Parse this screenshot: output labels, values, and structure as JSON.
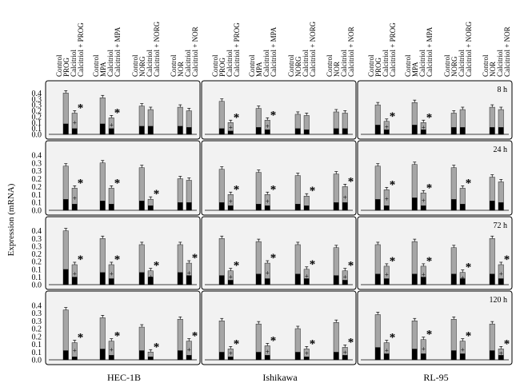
{
  "figure": {
    "ylabel": "Expression (mRNA)",
    "columns": [
      "HEC-1B",
      "Ishikawa",
      "RL-95"
    ],
    "rows": [
      "8 h",
      "24 h",
      "72 h",
      "120 h"
    ],
    "treatment_labels": [
      "Control",
      "PROG",
      "Calcitriol",
      "Calcitriol + PROG",
      "Control",
      "MPA",
      "Calcitriol",
      "Calcitriol + MPA",
      "Control",
      "NORG",
      "Calcitriol",
      "Calcitriol + NORG",
      "Control",
      "NOR",
      "Calcitriol",
      "Calcitriol + NOR"
    ],
    "y_ticks": [
      "0.0",
      "0.1",
      "0.1",
      "0.2",
      "0.2",
      "0.3",
      "0.3",
      "0.4"
    ],
    "significance_symbol": "*",
    "inner_symbol": "+",
    "colors": {
      "total": "#a6a6a6",
      "inner": "#000000",
      "panel_bg": "#f2f2f2",
      "border": "#000000"
    }
  },
  "chart_data": {
    "type": "bar",
    "title": "",
    "xlabel": "",
    "ylabel": "Expression (mRNA)",
    "ylim": [
      0,
      0.4
    ],
    "grid": false,
    "stacked_overlay": true,
    "categories": [
      "Control",
      "PROG",
      "Calcitriol",
      "Calcitriol + PROG",
      "Control",
      "MPA",
      "Calcitriol",
      "Calcitriol + MPA",
      "Control",
      "NORG",
      "Calcitriol",
      "Calcitriol + NORG",
      "Control",
      "NOR",
      "Calcitriol",
      "Calcitriol + NOR"
    ],
    "panels": [
      {
        "row": "8 h",
        "column": "HEC-1B",
        "total": [
          0.35,
          0.18,
          0.31,
          0.14,
          0.24,
          0.21,
          0.23,
          0.2
        ],
        "inner": [
          0.09,
          0.05,
          0.09,
          0.05,
          0.07,
          0.07,
          0.07,
          0.06
        ],
        "star": [
          false,
          true,
          false,
          true,
          false,
          false,
          false,
          false
        ],
        "plus": [
          false,
          true,
          false,
          true,
          false,
          false,
          false,
          false
        ]
      },
      {
        "row": "8 h",
        "column": "Ishikawa",
        "total": [
          0.28,
          0.1,
          0.22,
          0.12,
          0.17,
          0.16,
          0.19,
          0.18
        ],
        "inner": [
          0.05,
          0.03,
          0.06,
          0.04,
          0.05,
          0.04,
          0.05,
          0.05
        ],
        "star": [
          false,
          true,
          false,
          true,
          false,
          false,
          false,
          false
        ],
        "plus": [
          false,
          true,
          false,
          true,
          false,
          false,
          false,
          false
        ]
      },
      {
        "row": "8 h",
        "column": "RL-95",
        "total": [
          0.25,
          0.11,
          0.27,
          0.1,
          0.18,
          0.21,
          0.23,
          0.21
        ],
        "inner": [
          0.08,
          0.04,
          0.08,
          0.04,
          0.06,
          0.06,
          0.06,
          0.06
        ],
        "star": [
          false,
          true,
          false,
          true,
          false,
          false,
          false,
          false
        ],
        "plus": [
          false,
          true,
          false,
          true,
          false,
          false,
          false,
          false
        ]
      },
      {
        "row": "24 h",
        "column": "HEC-1B",
        "total": [
          0.28,
          0.14,
          0.3,
          0.14,
          0.27,
          0.07,
          0.2,
          0.19
        ],
        "inner": [
          0.07,
          0.04,
          0.06,
          0.04,
          0.06,
          0.03,
          0.05,
          0.05
        ],
        "star": [
          false,
          true,
          false,
          true,
          false,
          true,
          false,
          false
        ],
        "plus": [
          false,
          true,
          false,
          false,
          false,
          false,
          false,
          false
        ]
      },
      {
        "row": "24 h",
        "column": "Ishikawa",
        "total": [
          0.26,
          0.1,
          0.24,
          0.1,
          0.22,
          0.09,
          0.23,
          0.15
        ],
        "inner": [
          0.05,
          0.03,
          0.04,
          0.03,
          0.04,
          0.03,
          0.05,
          0.05
        ],
        "star": [
          false,
          true,
          false,
          true,
          false,
          true,
          false,
          true
        ],
        "plus": [
          false,
          true,
          false,
          true,
          false,
          false,
          false,
          true
        ]
      },
      {
        "row": "24 h",
        "column": "RL-95",
        "total": [
          0.28,
          0.13,
          0.29,
          0.11,
          0.27,
          0.14,
          0.21,
          0.18
        ],
        "inner": [
          0.07,
          0.03,
          0.08,
          0.03,
          0.07,
          0.04,
          0.06,
          0.05
        ],
        "star": [
          false,
          true,
          false,
          true,
          false,
          true,
          false,
          false
        ],
        "plus": [
          false,
          true,
          false,
          true,
          false,
          false,
          false,
          false
        ]
      },
      {
        "row": "72 h",
        "column": "HEC-1B",
        "total": [
          0.35,
          0.13,
          0.3,
          0.13,
          0.26,
          0.09,
          0.26,
          0.14
        ],
        "inner": [
          0.1,
          0.05,
          0.08,
          0.04,
          0.08,
          0.05,
          0.08,
          0.06
        ],
        "star": [
          false,
          true,
          false,
          true,
          false,
          true,
          false,
          true
        ],
        "plus": [
          false,
          true,
          false,
          true,
          false,
          true,
          false,
          true
        ]
      },
      {
        "row": "72 h",
        "column": "Ishikawa",
        "total": [
          0.3,
          0.09,
          0.28,
          0.14,
          0.26,
          0.1,
          0.24,
          0.09
        ],
        "inner": [
          0.06,
          0.03,
          0.07,
          0.04,
          0.07,
          0.04,
          0.06,
          0.03
        ],
        "star": [
          false,
          true,
          false,
          true,
          false,
          true,
          false,
          true
        ],
        "plus": [
          false,
          true,
          false,
          true,
          false,
          true,
          false,
          true
        ]
      },
      {
        "row": "72 h",
        "column": "RL-95",
        "total": [
          0.26,
          0.12,
          0.28,
          0.12,
          0.24,
          0.08,
          0.3,
          0.13
        ],
        "inner": [
          0.07,
          0.04,
          0.07,
          0.05,
          0.07,
          0.04,
          0.07,
          0.04
        ],
        "star": [
          false,
          true,
          false,
          true,
          false,
          true,
          false,
          true
        ],
        "plus": [
          false,
          true,
          false,
          true,
          false,
          true,
          false,
          true
        ]
      },
      {
        "row": "120 h",
        "column": "HEC-1B",
        "total": [
          0.32,
          0.11,
          0.27,
          0.12,
          0.21,
          0.05,
          0.26,
          0.12
        ],
        "inner": [
          0.06,
          0.02,
          0.07,
          0.03,
          0.06,
          0.02,
          0.06,
          0.03
        ],
        "star": [
          false,
          true,
          false,
          true,
          false,
          true,
          false,
          true
        ],
        "plus": [
          false,
          true,
          false,
          true,
          false,
          false,
          false,
          true
        ]
      },
      {
        "row": "120 h",
        "column": "Ishikawa",
        "total": [
          0.25,
          0.07,
          0.23,
          0.09,
          0.2,
          0.07,
          0.24,
          0.08
        ],
        "inner": [
          0.05,
          0.02,
          0.05,
          0.03,
          0.05,
          0.02,
          0.05,
          0.03
        ],
        "star": [
          false,
          true,
          false,
          true,
          false,
          true,
          false,
          true
        ],
        "plus": [
          false,
          true,
          false,
          true,
          false,
          true,
          false,
          true
        ]
      },
      {
        "row": "120 h",
        "column": "RL-95",
        "total": [
          0.29,
          0.11,
          0.25,
          0.13,
          0.26,
          0.12,
          0.23,
          0.07
        ],
        "inner": [
          0.08,
          0.04,
          0.07,
          0.04,
          0.06,
          0.04,
          0.06,
          0.03
        ],
        "star": [
          false,
          true,
          false,
          true,
          false,
          true,
          false,
          true
        ],
        "plus": [
          false,
          true,
          false,
          true,
          false,
          true,
          false,
          true
        ]
      }
    ]
  }
}
